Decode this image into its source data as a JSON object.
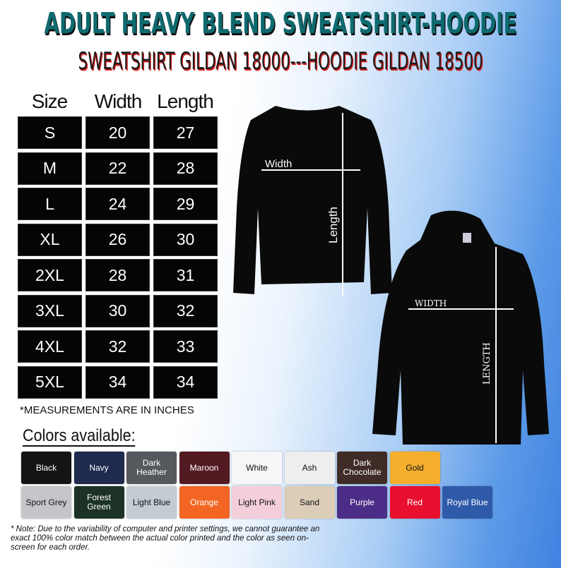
{
  "header": {
    "title": "ADULT HEAVY BLEND SWEATSHIRT-HOODIE",
    "subtitle": "SWEATSHIRT GILDAN 18000---HOODIE GILDAN 18500"
  },
  "size_table": {
    "columns": [
      "Size",
      "Width",
      "Length"
    ],
    "rows": [
      [
        "S",
        "20",
        "27"
      ],
      [
        "M",
        "22",
        "28"
      ],
      [
        "L",
        "24",
        "29"
      ],
      [
        "XL",
        "26",
        "30"
      ],
      [
        "2XL",
        "28",
        "31"
      ],
      [
        "3XL",
        "30",
        "32"
      ],
      [
        "4XL",
        "32",
        "33"
      ],
      [
        "5XL",
        "34",
        "34"
      ]
    ],
    "unit_note": "*MEASUREMENTS ARE IN INCHES"
  },
  "diagram": {
    "sweatshirt_width": "Width",
    "sweatshirt_length": "Length",
    "hoodie_width": "WIDTH",
    "hoodie_length": "LENGTH"
  },
  "colors": {
    "title": "Colors available:",
    "swatches": [
      {
        "label": "Black",
        "color": "#141414",
        "text": "#fff"
      },
      {
        "label": "Navy",
        "color": "#1e2a4e",
        "text": "#fff"
      },
      {
        "label": "Dark Heather",
        "color": "#55585c",
        "text": "#fff"
      },
      {
        "label": "Maroon",
        "color": "#531a22",
        "text": "#fff"
      },
      {
        "label": "White",
        "color": "#f6f6f8",
        "text": "#111"
      },
      {
        "label": "Ash",
        "color": "#eeeeee",
        "text": "#111"
      },
      {
        "label": "Dark Chocolate",
        "color": "#3f2c26",
        "text": "#fff"
      },
      {
        "label": "Gold",
        "color": "#f6ae2d",
        "text": "#111"
      },
      {
        "label": "Sport Grey",
        "color": "#c6c6ca",
        "text": "#111"
      },
      {
        "label": "Forest Green",
        "color": "#1d3226",
        "text": "#fff"
      },
      {
        "label": "Light Blue",
        "color": "#c3cbd3",
        "text": "#111"
      },
      {
        "label": "Orange",
        "color": "#f26523",
        "text": "#fff"
      },
      {
        "label": "Light Pink",
        "color": "#f4cfdb",
        "text": "#111"
      },
      {
        "label": "Sand",
        "color": "#dccdb9",
        "text": "#111"
      },
      {
        "label": "Purple",
        "color": "#4b2c86",
        "text": "#fff"
      },
      {
        "label": "Red",
        "color": "#e8102e",
        "text": "#fff"
      },
      {
        "label": "Royal Blue",
        "color": "#2f5aa9",
        "text": "#fff"
      }
    ]
  },
  "note": "* Note: Due to the variability of computer and printer settings, we cannot guarantee an exact 100% color match between the actual color printed and the color as seen on-screen for each order."
}
